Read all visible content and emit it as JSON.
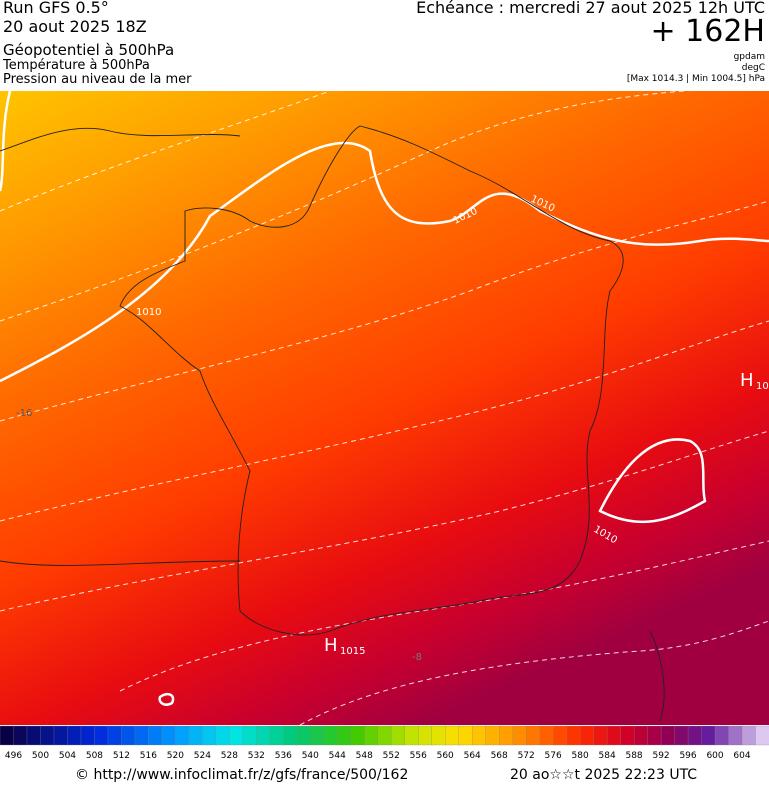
{
  "header": {
    "run": "Run GFS 0.5°",
    "run_date": "20 aout 2025 18Z",
    "field1": "Géopotentiel à 500hPa",
    "field2": "Température à 500hPa",
    "field3": "Pression au niveau de la mer",
    "valid": "Echéance : mercredi 27 aout 2025 12h UTC",
    "lead": "+ 162H",
    "unit1": "gpdam",
    "unit2": "degC",
    "pressure_range": "[Max 1014.3 | Min 1004.5] hPa"
  },
  "map": {
    "labels": [
      "1010",
      "1010",
      "1010",
      "1010",
      "-16",
      "H",
      "10",
      "H",
      "1015",
      "-8"
    ]
  },
  "colorbar": {
    "labels": [
      496,
      500,
      504,
      508,
      512,
      516,
      520,
      524,
      528,
      532,
      536,
      540,
      544,
      548,
      552,
      556,
      560,
      564,
      568,
      572,
      576,
      580,
      584,
      588,
      592,
      596,
      600,
      604
    ]
  },
  "footer": {
    "url": "© http://www.infoclimat.fr/z/gfs/france/500/162",
    "timestamp": "20 ao☆☆t 2025 22:23 UTC"
  }
}
